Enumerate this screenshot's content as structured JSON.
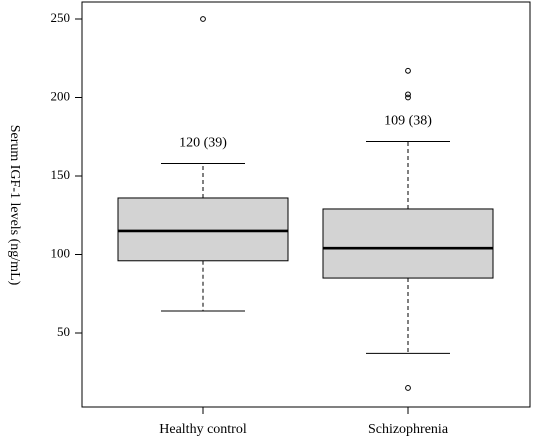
{
  "chart_data": {
    "type": "box",
    "title": "",
    "xlabel": "",
    "ylabel": "Serum IGF-1 levels (ng/mL)",
    "ylim": [
      5,
      260
    ],
    "yticks": [
      50,
      100,
      150,
      200,
      250
    ],
    "ytick_labels": [
      "50",
      "100",
      "150",
      "200",
      "250"
    ],
    "grid": false,
    "box_fill": "#d3d3d3",
    "categories": [
      "Healthy control",
      "Schizophrenia"
    ],
    "boxes": [
      {
        "category": "Healthy control",
        "whisker_low": 64,
        "q1": 96,
        "median": 115,
        "q3": 136,
        "whisker_high": 158,
        "outliers": [
          250
        ],
        "annotation": "120 (39)"
      },
      {
        "category": "Schizophrenia",
        "whisker_low": 37,
        "q1": 85,
        "median": 104,
        "q3": 129,
        "whisker_high": 172,
        "outliers": [
          15,
          200,
          202,
          217
        ],
        "annotation": "109 (38)"
      }
    ]
  }
}
